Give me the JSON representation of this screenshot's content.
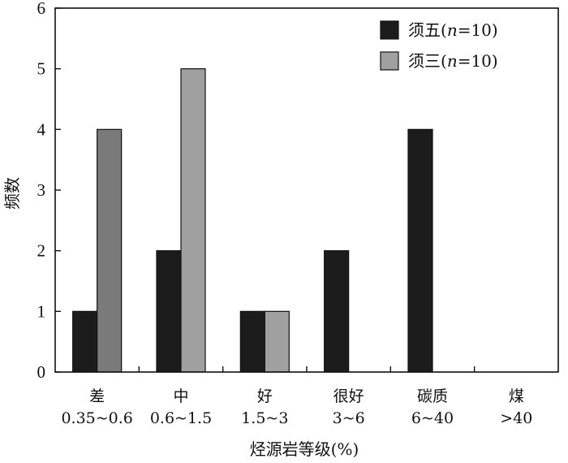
{
  "chart_data": {
    "type": "bar",
    "categories": [
      [
        "差",
        "0.35~0.6"
      ],
      [
        "中",
        "0.6~1.5"
      ],
      [
        "好",
        "1.5~3"
      ],
      [
        "很好",
        "3~6"
      ],
      [
        "碳质",
        "6~40"
      ],
      [
        "煤",
        ">40"
      ]
    ],
    "series": [
      {
        "name": "须五(n=10)",
        "name_prefix": "须五(",
        "name_var": "n",
        "name_suffix": "=10)",
        "color": "#1c1c1c",
        "values": [
          1,
          2,
          1,
          2,
          4,
          0
        ]
      },
      {
        "name": "须三(n=10)",
        "name_prefix": "须三(",
        "name_var": "n",
        "name_suffix": "=10)",
        "color": "#a0a0a0",
        "values": [
          4,
          5,
          1,
          0,
          0,
          0
        ]
      }
    ],
    "second_series_alt_color": "#7a7a7a",
    "xlabel": "烃源岩等级(%)",
    "ylabel": "频数",
    "ylim": [
      0,
      6
    ],
    "yticks": [
      0,
      1,
      2,
      3,
      4,
      5,
      6
    ],
    "legend_position": "top-right",
    "grid": false
  }
}
